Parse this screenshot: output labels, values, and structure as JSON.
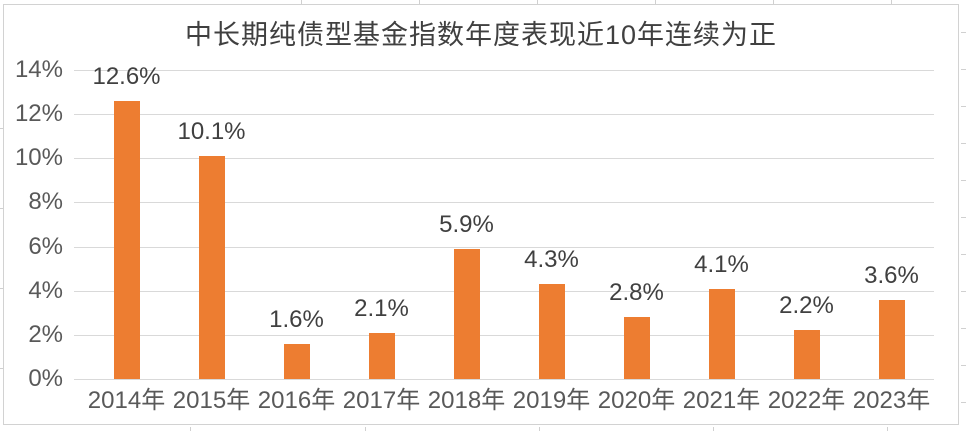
{
  "chart_data": {
    "type": "bar",
    "title": "中长期纯债型基金指数年度表现近10年连续为正",
    "categories": [
      "2014年",
      "2015年",
      "2016年",
      "2017年",
      "2018年",
      "2019年",
      "2020年",
      "2021年",
      "2022年",
      "2023年"
    ],
    "values": [
      12.6,
      10.1,
      1.6,
      2.1,
      5.9,
      4.3,
      2.8,
      4.1,
      2.2,
      3.6
    ],
    "data_labels": [
      "12.6%",
      "10.1%",
      "1.6%",
      "2.1%",
      "5.9%",
      "4.3%",
      "2.8%",
      "4.1%",
      "2.2%",
      "3.6%"
    ],
    "yticks": [
      "14%",
      "12%",
      "10%",
      "8%",
      "6%",
      "4%",
      "2%",
      "0%"
    ],
    "ylim": [
      0,
      14
    ],
    "xlabel": "",
    "ylabel": "",
    "grid": true,
    "legend": "none",
    "bar_color": "#ED7D31",
    "gridline_color": "#D9D9D9",
    "title_color": "#404040",
    "data_label_color": "#404040",
    "axis_label_color": "#595959",
    "frame_border_color": "#D2D2D2"
  }
}
